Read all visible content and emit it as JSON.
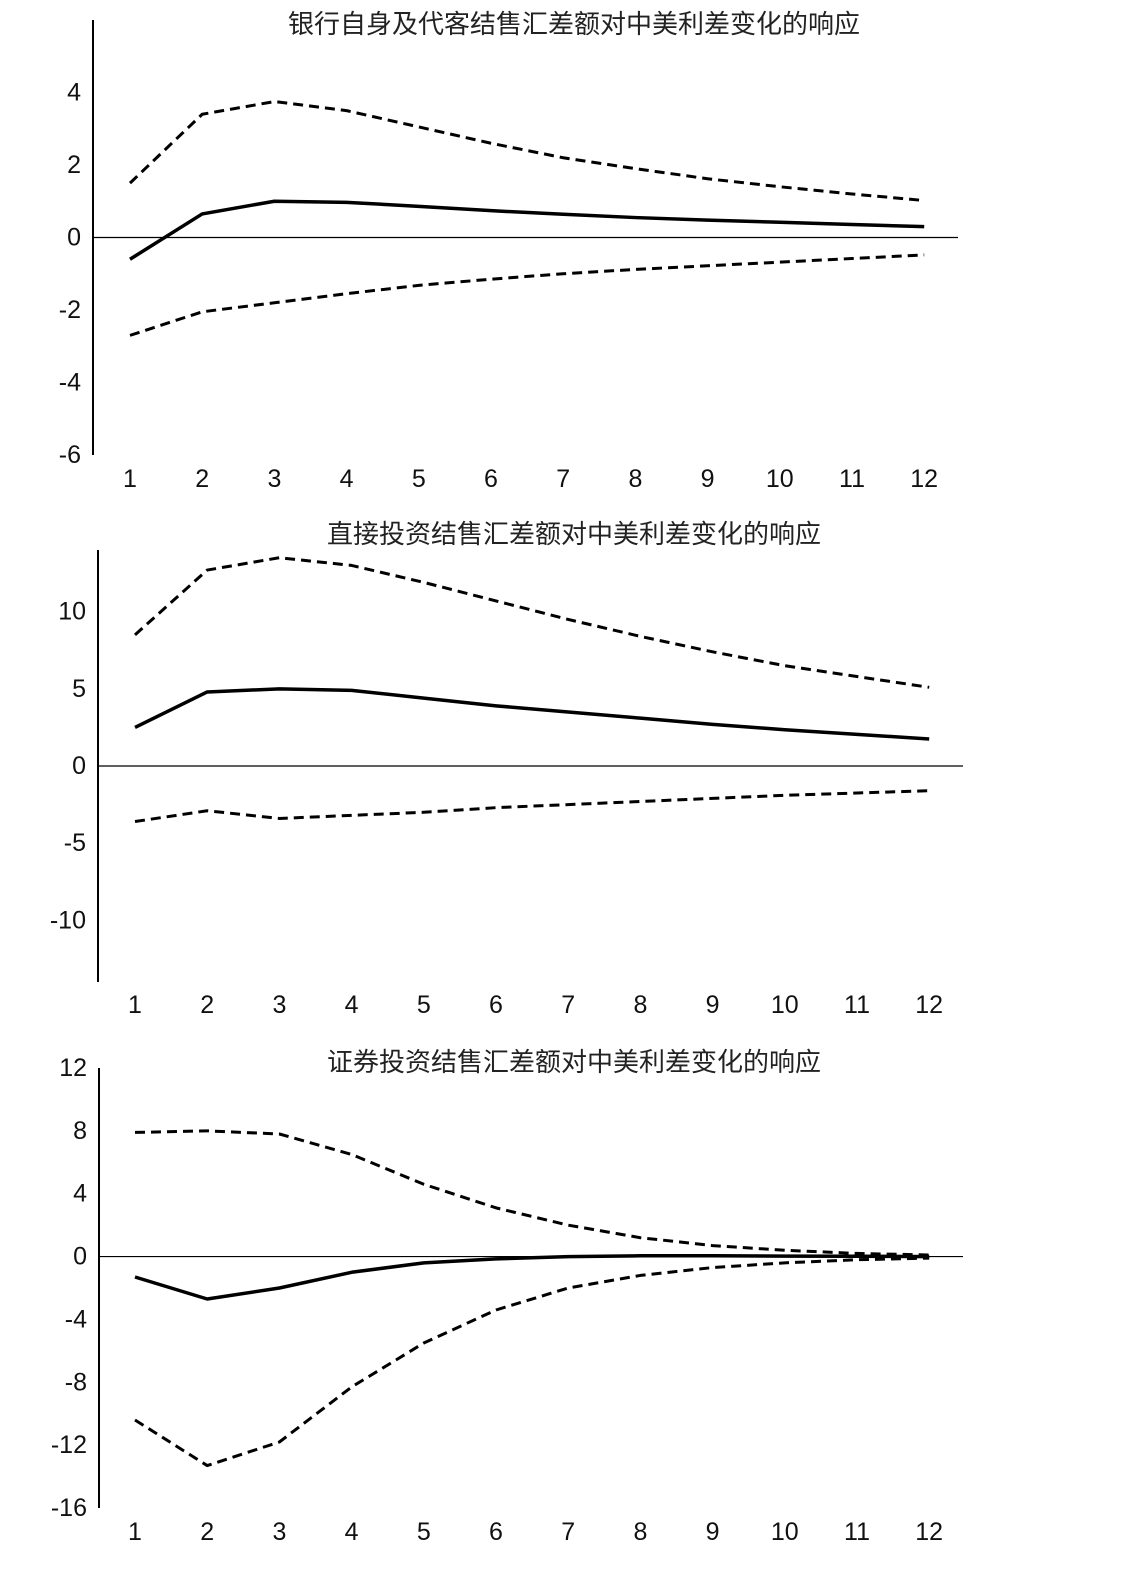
{
  "chart_data": [
    {
      "type": "line",
      "title": "银行自身及代客结售汇差额对中美利差变化的响应",
      "categories": [
        "1",
        "2",
        "3",
        "4",
        "5",
        "6",
        "7",
        "8",
        "9",
        "10",
        "11",
        "12"
      ],
      "ylim": [
        -6,
        6
      ],
      "yticks": [
        4,
        2,
        0,
        -2,
        -4,
        -6
      ],
      "series": [
        {
          "style": "solid",
          "values": [
            -0.6,
            0.65,
            1.0,
            0.97,
            0.86,
            0.74,
            0.64,
            0.55,
            0.48,
            0.42,
            0.36,
            0.3
          ]
        },
        {
          "style": "dashed",
          "values": [
            1.5,
            3.4,
            3.75,
            3.5,
            3.05,
            2.6,
            2.2,
            1.9,
            1.62,
            1.4,
            1.2,
            1.02
          ]
        },
        {
          "style": "dashed",
          "values": [
            -2.7,
            -2.05,
            -1.8,
            -1.55,
            -1.32,
            -1.15,
            -1.0,
            -0.88,
            -0.78,
            -0.68,
            -0.58,
            -0.48
          ]
        }
      ]
    },
    {
      "type": "line",
      "title": "直接投资结售汇差额对中美利差变化的响应",
      "categories": [
        "1",
        "2",
        "3",
        "4",
        "5",
        "6",
        "7",
        "8",
        "9",
        "10",
        "11",
        "12"
      ],
      "ylim": [
        -14,
        14
      ],
      "yticks": [
        10,
        5,
        0,
        -5,
        -10
      ],
      "series": [
        {
          "style": "solid",
          "values": [
            2.5,
            4.8,
            5.0,
            4.9,
            4.4,
            3.9,
            3.5,
            3.1,
            2.7,
            2.35,
            2.05,
            1.75
          ]
        },
        {
          "style": "dashed",
          "values": [
            8.5,
            12.7,
            13.5,
            13.0,
            11.9,
            10.7,
            9.5,
            8.4,
            7.4,
            6.5,
            5.8,
            5.1
          ]
        },
        {
          "style": "dashed",
          "values": [
            -3.6,
            -2.9,
            -3.4,
            -3.2,
            -3.0,
            -2.7,
            -2.5,
            -2.3,
            -2.1,
            -1.9,
            -1.75,
            -1.6
          ]
        }
      ]
    },
    {
      "type": "line",
      "title": "证券投资结售汇差额对中美利差变化的响应",
      "categories": [
        "1",
        "2",
        "3",
        "4",
        "5",
        "6",
        "7",
        "8",
        "9",
        "10",
        "11",
        "12"
      ],
      "ylim": [
        -16,
        12
      ],
      "yticks": [
        12,
        8,
        4,
        0,
        -4,
        -8,
        -12,
        -16
      ],
      "series": [
        {
          "style": "solid",
          "values": [
            -1.3,
            -2.7,
            -2.0,
            -1.0,
            -0.4,
            -0.15,
            0.0,
            0.05,
            0.05,
            0.03,
            0.02,
            0.0
          ]
        },
        {
          "style": "dashed",
          "values": [
            7.9,
            8.0,
            7.8,
            6.5,
            4.6,
            3.1,
            2.0,
            1.2,
            0.7,
            0.4,
            0.2,
            0.1
          ]
        },
        {
          "style": "dashed",
          "values": [
            -10.4,
            -13.3,
            -11.8,
            -8.3,
            -5.5,
            -3.4,
            -2.0,
            -1.2,
            -0.7,
            -0.4,
            -0.2,
            -0.1
          ]
        }
      ]
    }
  ]
}
